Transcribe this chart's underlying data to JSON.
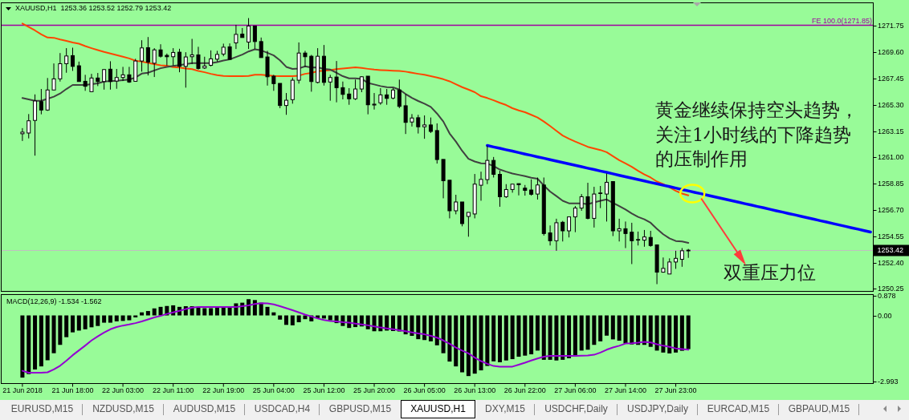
{
  "chart_data": [
    {
      "type": "candlestick",
      "title": "XAUUSD,H1  1253.36 1253.52 1252.79 1253.42",
      "categories": [
        null,
        null,
        null,
        null,
        null,
        null,
        null,
        null,
        null,
        null,
        null,
        null,
        null,
        null,
        null,
        null,
        null,
        null,
        null,
        null,
        null,
        null,
        null,
        null,
        null,
        null,
        null,
        null,
        null,
        null,
        null,
        null,
        null,
        null,
        null,
        null,
        null,
        null,
        null,
        null,
        null,
        null,
        null,
        null,
        null,
        null,
        null,
        null,
        null,
        null,
        null,
        null,
        null,
        null,
        null,
        null,
        null,
        null,
        null,
        null,
        null,
        null,
        null,
        null,
        null,
        null,
        null,
        null,
        null,
        null,
        null,
        null,
        null,
        null,
        null,
        null,
        null,
        null,
        null,
        null,
        null,
        null,
        null,
        null,
        null,
        null,
        null,
        null,
        null,
        null,
        null,
        null,
        null,
        null,
        null,
        null,
        null,
        null,
        null,
        null,
        null,
        null,
        null,
        null,
        null,
        null,
        null,
        null,
        null,
        null,
        null,
        null,
        null,
        null,
        null,
        null,
        null,
        null,
        null,
        null,
        null,
        null,
        null,
        null,
        null,
        null,
        null,
        null,
        null,
        null,
        null,
        null,
        null,
        null,
        null,
        null
      ],
      "ohlc": [
        [
          1262.94,
          1263.4,
          1262.35,
          1263.07
        ],
        [
          1263,
          1264.55,
          1262.56,
          1264
        ],
        [
          1264.03,
          1266.16,
          1261.15,
          1265.62
        ],
        [
          1265.57,
          1266.6,
          1264.53,
          1264.88
        ],
        [
          1264.88,
          1267.5,
          1264.81,
          1266.52
        ],
        [
          1266.52,
          1268.69,
          1266.52,
          1267.43
        ],
        [
          1267.43,
          1269.54,
          1267.21,
          1268.67
        ],
        [
          1268.67,
          1269.94,
          1267.93,
          1269.3
        ],
        [
          1269.33,
          1269.98,
          1268.08,
          1268.45
        ],
        [
          1268.5,
          1268.84,
          1267.21,
          1267.21
        ],
        [
          1267.23,
          1267.76,
          1266.45,
          1266.82
        ],
        [
          1266.38,
          1267.84,
          1266.38,
          1267.5
        ],
        [
          1267.5,
          1267.91,
          1266.84,
          1267.21
        ],
        [
          1267.21,
          1268.24,
          1266.55,
          1268.19
        ],
        [
          1268.22,
          1268.87,
          1266.55,
          1267.21
        ],
        [
          1267.25,
          1268.24,
          1266.62,
          1267.54
        ],
        [
          1267.54,
          1268.41,
          1267.25,
          1267.76
        ],
        [
          1267.76,
          1268.41,
          1267.1,
          1267.17
        ],
        [
          1267.23,
          1269.07,
          1267.23,
          1268.89
        ],
        [
          1268.89,
          1270.59,
          1268.02,
          1269.96
        ],
        [
          1269.98,
          1270.85,
          1267.71,
          1268.8
        ],
        [
          1268.71,
          1269.94,
          1267.58,
          1269.8
        ],
        [
          1269.8,
          1270.26,
          1269.17,
          1269.28
        ],
        [
          1269.35,
          1269.5,
          1268.52,
          1269.24
        ],
        [
          1269.24,
          1269.94,
          1268.52,
          1269.59
        ],
        [
          1269.61,
          1269.89,
          1267.97,
          1268.45
        ],
        [
          1268.45,
          1269.61,
          1266.71,
          1269.22
        ],
        [
          1269.24,
          1270.7,
          1268.63,
          1269.39
        ],
        [
          1269.39,
          1270.05,
          1268.19,
          1268.28
        ],
        [
          1268.32,
          1269.24,
          1268.24,
          1268.48
        ],
        [
          1268.54,
          1269.76,
          1268.45,
          1269.07
        ],
        [
          1269.04,
          1269.72,
          1268.84,
          1269.43
        ],
        [
          1269.46,
          1270.31,
          1269.28,
          1270.02
        ],
        [
          1270.05,
          1270.33,
          1269.02,
          1269.02
        ],
        [
          1270.37,
          1271.85,
          1269.87,
          1271.07
        ],
        [
          1271.09,
          1271.59,
          1270.81,
          1270.81
        ],
        [
          1270.44,
          1272.4,
          1269.87,
          1271.75
        ],
        [
          1271.75,
          1271.75,
          1269.87,
          1270.48
        ],
        [
          1270.48,
          1270.81,
          1269.17,
          1269.17
        ],
        [
          1269.22,
          1269.72,
          1266.88,
          1267.6
        ],
        [
          1267.65,
          1267.76,
          1266.45,
          1267.04
        ],
        [
          1267.06,
          1267.06,
          1265.03,
          1265.25
        ],
        [
          1265.25,
          1266.27,
          1264.49,
          1265.68
        ],
        [
          1265.73,
          1267.54,
          1265.4,
          1267.32
        ],
        [
          1267.32,
          1270.41,
          1267.04,
          1269.54
        ],
        [
          1269.54,
          1269.72,
          1268.41,
          1269.24
        ],
        [
          1269.28,
          1269.39,
          1266.38,
          1267.21
        ],
        [
          1267.14,
          1269.94,
          1267.06,
          1269.28
        ],
        [
          1269.28,
          1270.2,
          1266.88,
          1267.14
        ],
        [
          1267.17,
          1267.76,
          1265.64,
          1267.54
        ],
        [
          1267.58,
          1268.89,
          1265.51,
          1266.71
        ],
        [
          1266.71,
          1267.21,
          1265.75,
          1266.16
        ],
        [
          1266.19,
          1266.67,
          1265.31,
          1265.8
        ],
        [
          1265.8,
          1267.37,
          1265.7,
          1266.6
        ],
        [
          1266.6,
          1267.65,
          1266.34,
          1267.6
        ],
        [
          1267.65,
          1267.65,
          1264.53,
          1265.31
        ],
        [
          1265.29,
          1266.27,
          1264.92,
          1265.36
        ],
        [
          1265.47,
          1266.67,
          1265.31,
          1266.12
        ],
        [
          1266.12,
          1266.6,
          1265.31,
          1265.83
        ],
        [
          1265.86,
          1266.67,
          1265.75,
          1266.52
        ],
        [
          1266.52,
          1267.37,
          1265.03,
          1265.18
        ],
        [
          1265.23,
          1266.19,
          1262.92,
          1263.87
        ],
        [
          1263.9,
          1264.55,
          1263.53,
          1264.23
        ],
        [
          1264.25,
          1264.49,
          1262.96,
          1263.51
        ],
        [
          1263.51,
          1264.44,
          1262.53,
          1263.66
        ],
        [
          1263.66,
          1264.27,
          1263,
          1263.13
        ],
        [
          1263.2,
          1263.79,
          1260.5,
          1260.83
        ],
        [
          1260.84,
          1260.84,
          1257.66,
          1259.1
        ],
        [
          1259.14,
          1259.14,
          1256.02,
          1256.64
        ],
        [
          1256.64,
          1257.95,
          1256.35,
          1257.36
        ],
        [
          1257.36,
          1257.36,
          1255.37,
          1255.59
        ],
        [
          1256.18,
          1256.51,
          1254.52,
          1256.51
        ],
        [
          1256.38,
          1259.65,
          1256.02,
          1258.82
        ],
        [
          1258.73,
          1259.84,
          1257.46,
          1259.21
        ],
        [
          1259.19,
          1261.98,
          1258.82,
          1260.76
        ],
        [
          1260.76,
          1261.04,
          1259.36,
          1259.62
        ],
        [
          1259.62,
          1259.91,
          1256.97,
          1257.79
        ],
        [
          1257.79,
          1258.82,
          1257.69,
          1258.38
        ],
        [
          1258.38,
          1258.82,
          1258.12,
          1258.82
        ],
        [
          1258.86,
          1258.86,
          1257.9,
          1258.77
        ],
        [
          1258.49,
          1258.75,
          1257.88,
          1258.31
        ],
        [
          1258.34,
          1259.21,
          1257.88,
          1257.99
        ],
        [
          1258.01,
          1259.36,
          1257.56,
          1258.75
        ],
        [
          1258.75,
          1259.36,
          1254.61,
          1254.78
        ],
        [
          1254.83,
          1255.44,
          1253.8,
          1254.19
        ],
        [
          1254.19,
          1255.99,
          1253.37,
          1255.66
        ],
        [
          1255.7,
          1255.81,
          1254.13,
          1255
        ],
        [
          1255,
          1256.14,
          1254.46,
          1256.14
        ],
        [
          1256.14,
          1257.03,
          1254.89,
          1256.86
        ],
        [
          1256.86,
          1258.01,
          1256.64,
          1257.79
        ],
        [
          1257.79,
          1258.93,
          1255.94,
          1256.02
        ],
        [
          1256.02,
          1258.6,
          1255.27,
          1258.01
        ],
        [
          1258.05,
          1258.67,
          1256.86,
          1258.1
        ],
        [
          1258.01,
          1259.69,
          1255.76,
          1258.97
        ],
        [
          1259.03,
          1259.03,
          1254.57,
          1255
        ],
        [
          1255,
          1255.99,
          1254.13,
          1255.17
        ],
        [
          1255.17,
          1255.76,
          1253.59,
          1254.78
        ],
        [
          1254.89,
          1255.66,
          1252.28,
          1254.19
        ],
        [
          1254.24,
          1254.94,
          1253.8,
          1254.29
        ],
        [
          1254.24,
          1255.07,
          1253.7,
          1254.5
        ],
        [
          1254.46,
          1255,
          1253.7,
          1253.8
        ],
        [
          1253.85,
          1253.85,
          1250.64,
          1251.62
        ],
        [
          1251.62,
          1252.82,
          1251.58,
          1251.93
        ],
        [
          1251.47,
          1252.75,
          1251.47,
          1252.45
        ],
        [
          1252.45,
          1253.37,
          1251.89,
          1252.75
        ],
        [
          1252.67,
          1253.59,
          1252.06,
          1253.37
        ],
        [
          1253.36,
          1253.52,
          1252.79,
          1253.42
        ],
        null,
        null,
        null,
        null,
        null,
        null,
        null,
        null,
        null,
        null,
        null,
        null,
        null,
        null,
        null,
        null,
        null,
        null,
        null,
        null,
        null,
        null,
        null,
        null,
        null,
        null,
        null,
        null,
        null
      ],
      "series": [
        {
          "type": "line",
          "color": "#ff4500",
          "values": [
            1271.96,
            1271.68,
            1271.39,
            1271.07,
            1270.81,
            1270.79,
            1270.65,
            1270.54,
            1270.41,
            1270.31,
            1270.11,
            1269.94,
            1269.78,
            1269.63,
            1269.5,
            1269.37,
            1269.24,
            1269.1,
            1268.91,
            1268.84,
            1268.74,
            1268.63,
            1268.54,
            1268.5,
            1268.39,
            1268.35,
            1268.28,
            1268.22,
            1268.08,
            1267.97,
            1267.84,
            1267.73,
            1267.67,
            1267.65,
            1267.65,
            1267.65,
            1267.67,
            1267.76,
            1267.76,
            1267.71,
            1267.67,
            1267.65,
            1267.65,
            1267.65,
            1267.69,
            1267.84,
            1267.91,
            1268.06,
            1268.1,
            1268.15,
            1268.22,
            1268.28,
            1268.32,
            1268.37,
            1268.32,
            1268.25,
            1268.19,
            1268.15,
            1268.12,
            1268.1,
            1268.08,
            1268.02,
            1267.93,
            1267.84,
            1267.76,
            1267.65,
            1267.54,
            1267.4,
            1267.23,
            1266.99,
            1266.75,
            1266.55,
            1266.34,
            1266.01,
            1265.86,
            1265.68,
            1265.47,
            1265.29,
            1265.03,
            1264.85,
            1264.7,
            1264.49,
            1264.27,
            1263.94,
            1263.57,
            1263.18,
            1262.79,
            1262.53,
            1262.3,
            1262.09,
            1261.87,
            1261.74,
            1261.61,
            1261.43,
            1261.11,
            1260.78,
            1260.52,
            1260.24,
            1259.91,
            1259.62,
            1259.36,
            1259.03,
            1258.82,
            1258.56,
            1258.27,
            1258.05,
            1257.9,
            null,
            null,
            null,
            null,
            null,
            null,
            null,
            null,
            null,
            null,
            null,
            null,
            null,
            null,
            null,
            null,
            null,
            null,
            null,
            null,
            null,
            null,
            null,
            null,
            null,
            null,
            null,
            null,
            null
          ]
        },
        {
          "type": "line",
          "color": "#404040",
          "values": [
            1265.86,
            1265.75,
            1265.64,
            1265.64,
            1265.8,
            1265.97,
            1266.23,
            1266.6,
            1266.93,
            1266.93,
            1266.93,
            1266.99,
            1267.06,
            1267.21,
            1267.25,
            1267.27,
            1267.32,
            1267.37,
            1267.54,
            1267.86,
            1267.93,
            1268.12,
            1268.3,
            1268.41,
            1268.48,
            1268.56,
            1268.63,
            1268.71,
            1268.71,
            1268.71,
            1268.71,
            1268.8,
            1268.93,
            1269.02,
            1269.22,
            1269.41,
            1269.67,
            1269.85,
            1269.76,
            1269.56,
            1269.35,
            1268.95,
            1268.41,
            1268.24,
            1268.28,
            1268.45,
            1268.35,
            1268.37,
            1268.24,
            1268.19,
            1267.93,
            1267.65,
            1267.47,
            1267.47,
            1267.43,
            1267.1,
            1266.97,
            1266.84,
            1266.75,
            1266.73,
            1266.55,
            1266.19,
            1265.88,
            1265.62,
            1265.4,
            1265.14,
            1264.59,
            1263.94,
            1262.96,
            1262.3,
            1261.54,
            1260.89,
            1260.67,
            1260.52,
            1260.5,
            1260.3,
            1260.01,
            1259.84,
            1259.69,
            1259.58,
            1259.47,
            1259.34,
            1259.26,
            1258.71,
            1258.21,
            1257.84,
            1257.46,
            1257.25,
            1257.25,
            1257.25,
            1257.18,
            1257.33,
            1257.46,
            1257.57,
            1257.29,
            1257.03,
            1256.74,
            1256.42,
            1256.14,
            1255.94,
            1255.66,
            1255.16,
            1254.72,
            1254.39,
            1254.17,
            1254.13,
            1254.02,
            null,
            null,
            null,
            null,
            null,
            null,
            null,
            null,
            null,
            null,
            null,
            null,
            null,
            null,
            null,
            null,
            null,
            null,
            null,
            null,
            null,
            null,
            null,
            null,
            null,
            null,
            null,
            null,
            null
          ]
        },
        {
          "type": "line",
          "color": "#0000ff",
          "values": [
            null,
            null,
            null,
            null,
            null,
            null,
            null,
            null,
            null,
            null,
            null,
            null,
            null,
            null,
            null,
            null,
            null,
            null,
            null,
            null,
            null,
            null,
            null,
            null,
            null,
            null,
            null,
            null,
            null,
            null,
            null,
            null,
            null,
            null,
            null,
            null,
            null,
            null,
            null,
            null,
            null,
            null,
            null,
            null,
            null,
            null,
            null,
            null,
            null,
            null,
            null,
            null,
            null,
            null,
            null,
            null,
            null,
            null,
            null,
            null,
            null,
            null,
            null,
            null,
            null,
            null,
            null,
            null,
            null,
            null,
            null,
            null,
            null,
            null,
            1261.98,
            1261.86,
            1261.75,
            1261.63,
            1261.52,
            1261.4,
            1261.28,
            1261.17,
            1261.05,
            1260.94,
            1260.82,
            1260.7,
            1260.59,
            1260.47,
            1260.36,
            1260.24,
            1260.12,
            1260.01,
            1259.89,
            1259.78,
            1259.66,
            1259.54,
            1259.43,
            1259.31,
            1259.2,
            1259.08,
            1258.96,
            1258.85,
            1258.73,
            1258.62,
            1258.5,
            1258.38,
            1258.27,
            1258.15,
            1258.04,
            1257.92,
            1257.8,
            1257.69,
            1257.57,
            1257.46,
            1257.34,
            1257.22,
            1257.11,
            1256.99,
            1256.88,
            1256.76,
            1256.64,
            1256.53,
            1256.41,
            1256.3,
            1256.18,
            1256.06,
            1255.95,
            1255.83,
            1255.72,
            1255.6,
            1255.48,
            1255.37,
            1255.25,
            1255.14,
            1255.02,
            1254.9
          ]
        }
      ],
      "ylim": [
        1250.05,
        1273.65
      ],
      "yticks": [
        1271.75,
        {
          "value": 1269.6,
          "label": "1269.60"
        },
        1267.45,
        {
          "value": 1265.3,
          "label": "1265.30"
        },
        1263.15,
        {
          "value": 1261,
          "label": "1261.00"
        },
        1258.85,
        {
          "value": 1256.7,
          "label": "1256.70"
        },
        1254.55,
        {
          "value": 1252.4,
          "label": "1252.40"
        },
        1250.25
      ],
      "tick_labels": "y",
      "ref_lines": [
        {
          "axis": "y",
          "value": 1271.85,
          "label": "FE 100.0(1271.85)",
          "color": "#a000a0"
        },
        {
          "axis": "y",
          "value": 1253.42,
          "label": "1253.42",
          "color": "#c0c0c0"
        }
      ],
      "annotations": [
        "黄金继续保持空头趋势，关注1小时线的下降趋势的压制作用",
        "双重压力位"
      ]
    },
    {
      "type": "bar",
      "title": "MACD(12,26,9) -1.534 -1.562",
      "categories": [
        "21 Jun 2018",
        null,
        null,
        null,
        null,
        null,
        null,
        null,
        "21 Jun 18:00",
        null,
        null,
        null,
        null,
        null,
        null,
        null,
        "22 Jun 03:00",
        null,
        null,
        null,
        null,
        null,
        null,
        null,
        "22 Jun 11:00",
        null,
        null,
        null,
        null,
        null,
        null,
        null,
        "22 Jun 19:00",
        null,
        null,
        null,
        null,
        null,
        null,
        null,
        "25 Jun 04:00",
        null,
        null,
        null,
        null,
        null,
        null,
        null,
        "25 Jun 12:00",
        null,
        null,
        null,
        null,
        null,
        null,
        null,
        "25 Jun 20:00",
        null,
        null,
        null,
        null,
        null,
        null,
        null,
        "26 Jun 05:00",
        null,
        null,
        null,
        null,
        null,
        null,
        null,
        "26 Jun 13:00",
        null,
        null,
        null,
        null,
        null,
        null,
        null,
        "26 Jun 22:00",
        null,
        null,
        null,
        null,
        null,
        null,
        null,
        "27 Jun 06:00",
        null,
        null,
        null,
        null,
        null,
        null,
        null,
        "27 Jun 14:00",
        null,
        null,
        null,
        null,
        null,
        null,
        null,
        "27 Jun 23:00",
        null,
        null,
        null,
        null,
        null,
        null,
        null,
        null,
        null,
        null,
        null,
        null,
        null,
        null,
        null,
        null,
        null,
        null,
        null,
        null,
        null,
        null,
        null,
        null,
        null,
        null,
        null,
        null,
        null,
        null,
        null
      ],
      "series": [
        {
          "type": "bar",
          "color": "#000000",
          "values": [
            -2.83,
            -2.67,
            -2.46,
            -2.32,
            -2.04,
            -1.72,
            -1.34,
            -0.99,
            -0.77,
            -0.69,
            -0.63,
            -0.54,
            -0.48,
            -0.33,
            -0.33,
            -0.27,
            -0.25,
            -0.22,
            -0.09,
            0.14,
            0.2,
            0.32,
            0.39,
            0.43,
            0.46,
            0.39,
            0.42,
            0.42,
            0.39,
            0.33,
            0.33,
            0.39,
            0.39,
            0.39,
            0.55,
            0.58,
            0.74,
            0.7,
            0.58,
            0.39,
            0.14,
            -0.19,
            -0.43,
            -0.45,
            -0.31,
            -0.17,
            -0.27,
            -0.12,
            -0.14,
            -0.22,
            -0.35,
            -0.48,
            -0.57,
            -0.53,
            -0.5,
            -0.63,
            -0.72,
            -0.72,
            -0.69,
            -0.71,
            -0.73,
            -0.86,
            -0.93,
            -1.08,
            -1.12,
            -1.18,
            -1.36,
            -1.72,
            -2.1,
            -2.32,
            -2.59,
            -2.76,
            -2.65,
            -2.5,
            -2.3,
            -2.09,
            -2.13,
            -2.05,
            -1.99,
            -1.88,
            -1.83,
            -1.77,
            -1.6,
            -2.02,
            -2.02,
            -2.05,
            -2.02,
            -1.95,
            -1.86,
            -1.6,
            -1.56,
            -1.34,
            -1.18,
            -0.92,
            -1.09,
            -1.15,
            -1.28,
            -1.32,
            -1.34,
            -1.34,
            -1.43,
            -1.6,
            -1.69,
            -1.73,
            -1.69,
            -1.61,
            -1.534,
            null,
            null,
            null,
            null,
            null,
            null,
            null,
            null,
            null,
            null,
            null,
            null,
            null,
            null,
            null,
            null,
            null,
            null,
            null,
            null,
            null,
            null,
            null,
            null,
            null,
            null,
            null,
            null,
            null
          ]
        },
        {
          "type": "line",
          "color": "#9400d3",
          "values": [
            -2.52,
            -2.61,
            -2.61,
            -2.61,
            -2.59,
            -2.46,
            -2.29,
            -2.06,
            -1.81,
            -1.59,
            -1.37,
            -1.14,
            -0.95,
            -0.78,
            -0.63,
            -0.53,
            -0.46,
            -0.41,
            -0.35,
            -0.27,
            -0.18,
            -0.09,
            -0.02,
            0.07,
            0.14,
            0.21,
            0.29,
            0.36,
            0.38,
            0.38,
            0.38,
            0.38,
            0.38,
            0.38,
            0.38,
            0.42,
            0.46,
            0.52,
            0.56,
            0.55,
            0.5,
            0.42,
            0.33,
            0.24,
            0.14,
            0.04,
            -0.05,
            -0.14,
            -0.21,
            -0.25,
            -0.27,
            -0.31,
            -0.33,
            -0.37,
            -0.41,
            -0.45,
            -0.5,
            -0.55,
            -0.59,
            -0.63,
            -0.67,
            -0.72,
            -0.77,
            -0.82,
            -0.86,
            -0.93,
            -1.01,
            -1.14,
            -1.29,
            -1.46,
            -1.6,
            -1.73,
            -1.92,
            -2.08,
            -2.2,
            -2.3,
            -2.33,
            -2.33,
            -2.33,
            -2.24,
            -2.15,
            -2.05,
            -1.96,
            -1.88,
            -1.84,
            -1.84,
            -1.84,
            -1.84,
            -1.84,
            -1.83,
            -1.82,
            -1.79,
            -1.69,
            -1.56,
            -1.46,
            -1.38,
            -1.28,
            -1.27,
            -1.24,
            -1.2,
            -1.23,
            -1.31,
            -1.38,
            -1.43,
            -1.5,
            -1.53,
            -1.562,
            null,
            null,
            null,
            null,
            null,
            null,
            null,
            null,
            null,
            null,
            null,
            null,
            null,
            null,
            null,
            null,
            null,
            null,
            null,
            null,
            null,
            null,
            null,
            null,
            null,
            null,
            null,
            null,
            null
          ]
        }
      ],
      "ylim": [
        -3.1,
        0.95
      ],
      "yticks": [
        0.878,
        {
          "value": 0,
          "label": "0.00"
        },
        -2.993
      ]
    },
    {
      "type": "other",
      "annotations": [
        "EURUSD,M15",
        "NZDUSD,M15",
        "AUDUSD,M15",
        "USDCAD,H4",
        "GBPUSD,M15",
        "XAUUSD,H1",
        "DXY,M15",
        "USDCHF,Daily",
        "USDJPY,Daily",
        "EURCAD,M15",
        "GBPAUD,M15"
      ]
    }
  ]
}
